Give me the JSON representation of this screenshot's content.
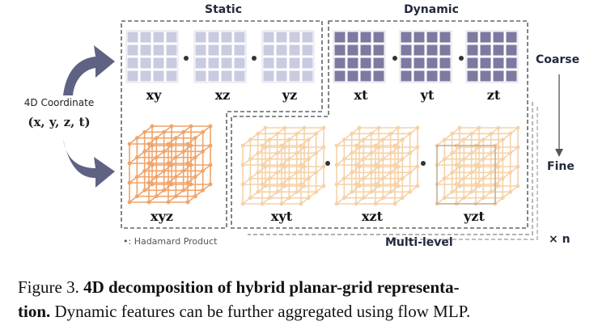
{
  "figure": {
    "group_static": "Static",
    "group_dynamic": "Dynamic",
    "input_label": "4D Coordinate",
    "input_coords": "(x, y, z, t)",
    "static_planes": [
      "xy",
      "xz",
      "yz"
    ],
    "dynamic_planes": [
      "xt",
      "yt",
      "zt"
    ],
    "static_grid": "xyz",
    "dynamic_grids": [
      "xyt",
      "xzt",
      "yzt"
    ],
    "coarse": "Coarse",
    "fine": "Fine",
    "multi_level": "Multi-level",
    "repeat": "× n",
    "hadamard_legend": "•: Hadamard Product",
    "colors": {
      "static_plane": "#c9cbe0",
      "dynamic_plane": "#7c7aa0",
      "static_grid": "#f0a46a",
      "dynamic_grid": "#f5d2a8",
      "arrow": "#5f6282"
    }
  },
  "caption": {
    "prefix": "Figure 3.",
    "bold": "4D decomposition of hybrid planar-grid representa-",
    "bold2": "tion.",
    "rest": "Dynamic features can be further aggregated using flow MLP."
  }
}
